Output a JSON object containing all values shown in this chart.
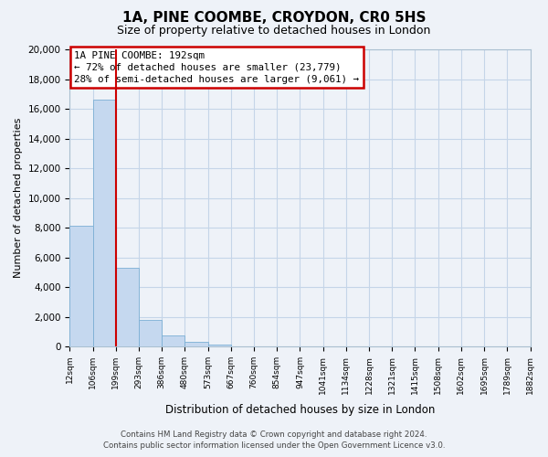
{
  "title": "1A, PINE COOMBE, CROYDON, CR0 5HS",
  "subtitle": "Size of property relative to detached houses in London",
  "xlabel": "Distribution of detached houses by size in London",
  "ylabel": "Number of detached properties",
  "bin_labels": [
    "12sqm",
    "106sqm",
    "199sqm",
    "293sqm",
    "386sqm",
    "480sqm",
    "573sqm",
    "667sqm",
    "760sqm",
    "854sqm",
    "947sqm",
    "1041sqm",
    "1134sqm",
    "1228sqm",
    "1321sqm",
    "1415sqm",
    "1508sqm",
    "1602sqm",
    "1695sqm",
    "1789sqm",
    "1882sqm"
  ],
  "bar_values": [
    8100,
    16600,
    5300,
    1800,
    750,
    300,
    150,
    0,
    0,
    0,
    0,
    0,
    0,
    0,
    0,
    0,
    0,
    0,
    0,
    0
  ],
  "bar_color": "#c5d8ef",
  "bar_edge_color": "#7bafd4",
  "annotation_line1": "1A PINE COOMBE: 192sqm",
  "annotation_line2": "← 72% of detached houses are smaller (23,779)",
  "annotation_line3": "28% of semi-detached houses are larger (9,061) →",
  "annotation_box_facecolor": "#ffffff",
  "annotation_box_edgecolor": "#cc0000",
  "red_line_color": "#cc0000",
  "ylim": [
    0,
    20000
  ],
  "yticks": [
    0,
    2000,
    4000,
    6000,
    8000,
    10000,
    12000,
    14000,
    16000,
    18000,
    20000
  ],
  "footer_line1": "Contains HM Land Registry data © Crown copyright and database right 2024.",
  "footer_line2": "Contains public sector information licensed under the Open Government Licence v3.0.",
  "background_color": "#eef2f8",
  "grid_color": "#c5d5e8"
}
